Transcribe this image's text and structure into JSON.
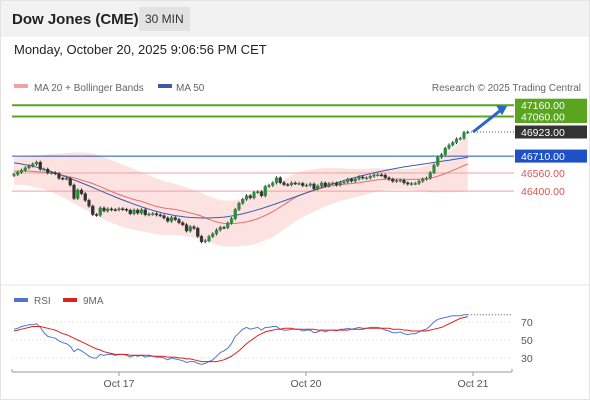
{
  "header": {
    "title": "Dow Jones (CME)",
    "timeframe": "30 MIN",
    "timestamp": "Monday, October 20, 2025 9:06:56 PM CET"
  },
  "legend": {
    "ma20": "MA 20 + Bollinger Bands",
    "ma50": "MA 50",
    "credit": "Research © 2025 Trading Central",
    "rsi": "RSI",
    "ma9": "9MA"
  },
  "colors": {
    "green": "#5aa51e",
    "blue": "#1e50c8",
    "red": "#e05050",
    "dark": "#333333",
    "ma20": "#e07070",
    "ma50": "#3c5ca8",
    "band": "#fde2e2",
    "rsi": "#4f74d4",
    "ma9": "#dd2020"
  },
  "chart_data": [
    {
      "type": "candlestick",
      "x_axis_labels": [
        "Oct 17",
        "Oct 20",
        "Oct 21"
      ],
      "ylim": [
        45850,
        47260
      ],
      "price_levels": [
        {
          "value": 47160.0,
          "label": "47160.00",
          "kind": "resistance",
          "color": "#5aa51e"
        },
        {
          "value": 47060.0,
          "label": "47060.00",
          "kind": "resistance",
          "color": "#5aa51e"
        },
        {
          "value": 46923.0,
          "label": "46923.00",
          "kind": "last price",
          "color": "#333333"
        },
        {
          "value": 46710.0,
          "label": "46710.00",
          "kind": "pivot",
          "color": "#1e50c8"
        },
        {
          "value": 46560.0,
          "label": "46560.00",
          "kind": "support",
          "color": "#e05050"
        },
        {
          "value": 46400.0,
          "label": "46400.00",
          "kind": "support",
          "color": "#e05050"
        }
      ],
      "arrow": {
        "from": 46923,
        "to": 47160,
        "direction": "up"
      },
      "close": [
        46548,
        46567,
        46585,
        46606,
        46624,
        46640,
        46656,
        46594,
        46594,
        46561,
        46563,
        46555,
        46514,
        46510,
        46512,
        46454,
        46336,
        46410,
        46378,
        46319,
        46268,
        46193,
        46188,
        46251,
        46225,
        46243,
        46236,
        46235,
        46244,
        46239,
        46232,
        46201,
        46233,
        46206,
        46235,
        46192,
        46197,
        46201,
        46190,
        46183,
        46163,
        46135,
        46166,
        46149,
        46121,
        46103,
        46048,
        46085,
        46072,
        46000,
        45953,
        45962,
        45999,
        46022,
        46057,
        46079,
        46078,
        46118,
        46157,
        46238,
        46293,
        46328,
        46360,
        46341,
        46389,
        46394,
        46360,
        46441,
        46451,
        46473,
        46518,
        46476,
        46458,
        46456,
        46472,
        46467,
        46468,
        46450,
        46452,
        46463,
        46421,
        46446,
        46472,
        46446,
        46467,
        46471,
        46455,
        46475,
        46481,
        46505,
        46489,
        46507,
        46525,
        46516,
        46517,
        46532,
        46544,
        46544,
        46542,
        46518,
        46505,
        46488,
        46493,
        46497,
        46473,
        46463,
        46467,
        46468,
        46488,
        46506,
        46514,
        46564,
        46630,
        46700,
        46724,
        46780,
        46808,
        46830,
        46861,
        46867,
        46920,
        46923
      ],
      "ma20": [
        46576,
        46578,
        46578,
        46578,
        46577,
        46575,
        46572,
        46570,
        46568,
        46565,
        46561,
        46555,
        46548,
        46541,
        46533,
        46525,
        46517,
        46508,
        46498,
        46488,
        46478,
        46467,
        46453,
        46440,
        46425,
        46411,
        46397,
        46383,
        46370,
        46358,
        46347,
        46337,
        46326,
        46317,
        46309,
        46298,
        46286,
        46275,
        46265,
        46258,
        46251,
        46246,
        46243,
        46238,
        46232,
        46224,
        46216,
        46207,
        46200,
        46190,
        46179,
        46164,
        46151,
        46139,
        46128,
        46120,
        46115,
        46113,
        46113,
        46115,
        46118,
        46122,
        46128,
        46136,
        46146,
        46157,
        46171,
        46186,
        46202,
        46218,
        46238,
        46259,
        46280,
        46302,
        46325,
        46345,
        46360,
        46373,
        46385,
        46396,
        46406,
        46417,
        46426,
        46435,
        46442,
        46448,
        46453,
        46457,
        46461,
        46464,
        46467,
        46471,
        46475,
        46480,
        46485,
        46490,
        46495,
        46500,
        46503,
        46505,
        46507,
        46507,
        46507,
        46506,
        46505,
        46504,
        46504,
        46505,
        46506,
        46508,
        46511,
        46516,
        46522,
        46532,
        46544,
        46556,
        46570,
        46584,
        46598,
        46612,
        46627,
        46640
      ],
      "ma50": [
        46650,
        46645,
        46640,
        46634,
        46627,
        46620,
        46612,
        46603,
        46593,
        46583,
        46572,
        46561,
        46549,
        46537,
        46525,
        46512,
        46499,
        46486,
        46473,
        46460,
        46446,
        46432,
        46418,
        46404,
        46390,
        46376,
        46362,
        46348,
        46335,
        46322,
        46309,
        46297,
        46285,
        46273,
        46262,
        46251,
        46240,
        46230,
        46221,
        46212,
        46204,
        46197,
        46190,
        46184,
        46179,
        46175,
        46171,
        46168,
        46166,
        46164,
        46163,
        46163,
        46163,
        46164,
        46166,
        46168,
        46171,
        46175,
        46180,
        46186,
        46193,
        46200,
        46208,
        46217,
        46226,
        46236,
        46246,
        46257,
        46268,
        46279,
        46290,
        46302,
        46314,
        46326,
        46338,
        46350,
        46362,
        46374,
        46386,
        46398,
        46410,
        46421,
        46432,
        46443,
        46454,
        46464,
        46474,
        46484,
        46494,
        46503,
        46512,
        46521,
        46530,
        46538,
        46546,
        46554,
        46562,
        46569,
        46576,
        46583,
        46590,
        46596,
        46602,
        46608,
        46614,
        46619,
        46624,
        46629,
        46634,
        46639,
        46644,
        46649,
        46654,
        46659,
        46664,
        46669,
        46674,
        46679,
        46684,
        46689,
        46694,
        46699
      ],
      "bands_half_width": [
        120,
        122,
        124,
        126,
        130,
        135,
        140,
        146,
        152,
        160,
        168,
        176,
        185,
        195,
        205,
        215,
        225,
        235,
        245,
        253,
        260,
        266,
        270,
        273,
        275,
        276,
        277,
        277,
        276,
        275,
        273,
        271,
        268,
        265,
        262,
        258,
        254,
        250,
        246,
        242,
        238,
        234,
        230,
        226,
        222,
        218,
        215,
        212,
        210,
        208,
        206,
        205,
        204,
        203,
        202,
        202,
        202,
        203,
        204,
        205,
        207,
        209,
        211,
        213,
        215,
        217,
        219,
        221,
        222,
        223,
        223,
        222,
        220,
        218,
        215,
        212,
        208,
        204,
        199,
        194,
        188,
        182,
        176,
        170,
        164,
        158,
        152,
        146,
        140,
        135,
        130,
        126,
        122,
        118,
        114,
        110,
        106,
        102,
        98,
        94,
        92,
        90,
        89,
        89,
        90,
        92,
        95,
        99,
        104,
        110,
        117,
        125,
        134,
        144,
        155,
        167,
        180,
        193,
        206,
        219,
        232,
        245
      ]
    },
    {
      "type": "line",
      "title": "RSI",
      "yticks": [
        70,
        50,
        30
      ],
      "ylim": [
        20,
        80
      ],
      "series": [
        {
          "name": "RSI",
          "values": [
            62,
            63,
            65,
            66,
            67,
            67,
            68,
            64,
            58,
            54,
            53,
            52,
            49,
            47,
            46,
            43,
            37,
            40,
            38,
            35,
            32,
            30,
            30,
            34,
            33,
            34,
            34,
            33,
            34,
            34,
            33,
            31,
            33,
            32,
            33,
            31,
            32,
            32,
            31,
            31,
            30,
            28,
            30,
            29,
            28,
            27,
            25,
            26,
            26,
            24,
            23,
            24,
            26,
            28,
            32,
            36,
            38,
            41,
            46,
            54,
            58,
            62,
            64,
            62,
            63,
            64,
            61,
            64,
            64,
            65,
            65,
            62,
            61,
            61,
            62,
            62,
            62,
            60,
            61,
            61,
            58,
            59,
            61,
            59,
            61,
            61,
            60,
            62,
            62,
            63,
            62,
            63,
            64,
            63,
            63,
            64,
            64,
            64,
            63,
            61,
            60,
            58,
            58,
            59,
            57,
            56,
            57,
            57,
            59,
            61,
            62,
            66,
            70,
            73,
            74,
            75,
            76,
            77,
            77,
            77,
            78,
            78
          ]
        },
        {
          "name": "9MA",
          "values": [
            60,
            61,
            62,
            63,
            64,
            65,
            65,
            65,
            64,
            63,
            62,
            61,
            59,
            57,
            56,
            54,
            52,
            50,
            48,
            46,
            44,
            42,
            40,
            39,
            37,
            36,
            35,
            34,
            34,
            34,
            34,
            33,
            33,
            33,
            33,
            33,
            33,
            32,
            32,
            32,
            32,
            31,
            31,
            31,
            30,
            30,
            29,
            29,
            28,
            27,
            26,
            26,
            26,
            26,
            26,
            27,
            28,
            30,
            32,
            35,
            38,
            42,
            46,
            49,
            52,
            55,
            57,
            59,
            60,
            61,
            62,
            62,
            63,
            63,
            63,
            62,
            62,
            62,
            62,
            62,
            62,
            61,
            61,
            61,
            61,
            61,
            61,
            61,
            61,
            61,
            62,
            62,
            62,
            62,
            63,
            63,
            63,
            63,
            63,
            63,
            63,
            62,
            62,
            62,
            61,
            61,
            60,
            60,
            60,
            60,
            60,
            61,
            62,
            63,
            64,
            66,
            68,
            70,
            72,
            74,
            75,
            76
          ]
        }
      ]
    }
  ]
}
